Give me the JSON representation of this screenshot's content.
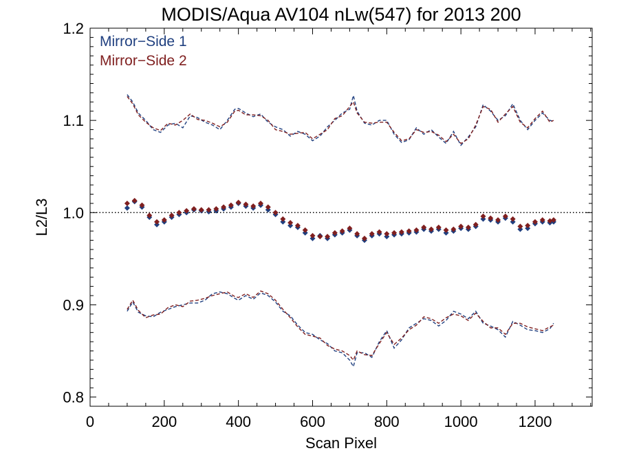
{
  "chart_data": {
    "type": "line",
    "title": "MODIS/Aqua AV104 nLw(547) for 2013 200",
    "xlabel": "Scan Pixel",
    "ylabel": "L2/L3",
    "xlim": [
      0,
      1354
    ],
    "ylim": [
      0.79,
      1.2
    ],
    "xticks": [
      0,
      200,
      400,
      600,
      800,
      1000,
      1200
    ],
    "xtick_labels": [
      "0",
      "200",
      "400",
      "600",
      "800",
      "1000",
      "1200"
    ],
    "yticks": [
      0.8,
      0.9,
      1.0,
      1.1,
      1.2
    ],
    "ytick_labels": [
      "0.8",
      "0.9",
      "1.0",
      "1.1",
      "1.2"
    ],
    "reference_line": {
      "y": 1.0,
      "style": "dotted"
    },
    "legend": {
      "placement": "top-left",
      "entries": [
        "Mirror−Side 1",
        "Mirror−Side 2"
      ]
    },
    "colors": {
      "mirror_side_1": "#1f3f7f",
      "mirror_side_2": "#7f1f1f"
    },
    "series": [
      {
        "name": "Mirror−Side 1",
        "kind": "mean",
        "style": "diamond-markers",
        "color": "#1f3f7f",
        "x": [
          100,
          120,
          140,
          160,
          180,
          200,
          220,
          240,
          260,
          280,
          300,
          320,
          340,
          360,
          380,
          400,
          420,
          440,
          460,
          480,
          500,
          520,
          540,
          560,
          580,
          600,
          620,
          640,
          660,
          680,
          700,
          720,
          740,
          760,
          780,
          800,
          820,
          840,
          860,
          880,
          900,
          920,
          940,
          960,
          980,
          1000,
          1020,
          1040,
          1060,
          1080,
          1100,
          1120,
          1140,
          1160,
          1180,
          1200,
          1220,
          1240,
          1250
        ],
        "y": [
          1.005,
          1.012,
          1.006,
          0.995,
          0.987,
          0.99,
          0.995,
          0.998,
          1.0,
          1.003,
          1.002,
          1.001,
          1.002,
          1.004,
          1.006,
          1.01,
          1.007,
          1.005,
          1.008,
          1.003,
          0.998,
          0.99,
          0.986,
          0.984,
          0.978,
          0.972,
          0.975,
          0.972,
          0.976,
          0.978,
          0.981,
          0.975,
          0.97,
          0.975,
          0.977,
          0.974,
          0.976,
          0.977,
          0.978,
          0.979,
          0.982,
          0.98,
          0.982,
          0.978,
          0.98,
          0.983,
          0.982,
          0.985,
          0.993,
          0.992,
          0.99,
          0.994,
          0.99,
          0.982,
          0.983,
          0.988,
          0.99,
          0.989,
          0.99
        ]
      },
      {
        "name": "Mirror−Side 2",
        "kind": "mean",
        "style": "diamond-markers",
        "color": "#7f1f1f",
        "x": [
          100,
          120,
          140,
          160,
          180,
          200,
          220,
          240,
          260,
          280,
          300,
          320,
          340,
          360,
          380,
          400,
          420,
          440,
          460,
          480,
          500,
          520,
          540,
          560,
          580,
          600,
          620,
          640,
          660,
          680,
          700,
          720,
          740,
          760,
          780,
          800,
          820,
          840,
          860,
          880,
          900,
          920,
          940,
          960,
          980,
          1000,
          1020,
          1040,
          1060,
          1080,
          1100,
          1120,
          1140,
          1160,
          1180,
          1200,
          1220,
          1240,
          1250
        ],
        "y": [
          1.01,
          1.013,
          1.008,
          0.997,
          0.99,
          0.992,
          0.997,
          1.0,
          1.002,
          1.004,
          1.003,
          1.003,
          1.004,
          1.006,
          1.008,
          1.011,
          1.009,
          1.007,
          1.01,
          1.006,
          1.0,
          0.993,
          0.989,
          0.986,
          0.981,
          0.975,
          0.974,
          0.974,
          0.978,
          0.98,
          0.983,
          0.977,
          0.972,
          0.977,
          0.979,
          0.977,
          0.978,
          0.979,
          0.98,
          0.981,
          0.984,
          0.982,
          0.984,
          0.981,
          0.982,
          0.985,
          0.984,
          0.987,
          0.996,
          0.994,
          0.992,
          0.996,
          0.993,
          0.985,
          0.986,
          0.99,
          0.992,
          0.991,
          0.992
        ]
      },
      {
        "name": "Mirror−Side 1 upper",
        "kind": "upper-bound",
        "style": "dashed",
        "color": "#1f3f7f",
        "x": [
          100,
          115,
          130,
          150,
          170,
          190,
          210,
          230,
          250,
          270,
          290,
          310,
          330,
          350,
          370,
          390,
          400,
          420,
          440,
          460,
          480,
          500,
          520,
          540,
          560,
          580,
          600,
          620,
          640,
          660,
          680,
          700,
          710,
          720,
          740,
          760,
          780,
          800,
          820,
          840,
          860,
          880,
          900,
          920,
          940,
          960,
          980,
          1000,
          1020,
          1040,
          1060,
          1080,
          1100,
          1120,
          1140,
          1160,
          1180,
          1200,
          1220,
          1240,
          1250
        ],
        "y": [
          1.128,
          1.12,
          1.108,
          1.1,
          1.09,
          1.087,
          1.095,
          1.097,
          1.092,
          1.105,
          1.103,
          1.098,
          1.095,
          1.09,
          1.1,
          1.112,
          1.113,
          1.108,
          1.104,
          1.107,
          1.098,
          1.093,
          1.09,
          1.083,
          1.088,
          1.085,
          1.078,
          1.083,
          1.093,
          1.1,
          1.108,
          1.112,
          1.127,
          1.11,
          1.097,
          1.095,
          1.1,
          1.1,
          1.085,
          1.076,
          1.079,
          1.092,
          1.085,
          1.09,
          1.082,
          1.075,
          1.088,
          1.073,
          1.082,
          1.093,
          1.117,
          1.11,
          1.1,
          1.105,
          1.118,
          1.1,
          1.09,
          1.1,
          1.108,
          1.1,
          1.099
        ]
      },
      {
        "name": "Mirror−Side 2 upper",
        "kind": "upper-bound",
        "style": "dashed",
        "color": "#7f1f1f",
        "x": [
          100,
          115,
          130,
          150,
          170,
          190,
          210,
          230,
          250,
          270,
          290,
          310,
          330,
          350,
          370,
          390,
          400,
          420,
          440,
          460,
          480,
          500,
          520,
          540,
          560,
          580,
          600,
          620,
          640,
          660,
          680,
          700,
          710,
          720,
          740,
          760,
          780,
          800,
          820,
          840,
          860,
          880,
          900,
          920,
          940,
          960,
          980,
          1000,
          1020,
          1040,
          1060,
          1080,
          1100,
          1120,
          1140,
          1160,
          1180,
          1200,
          1220,
          1240,
          1250
        ],
        "y": [
          1.126,
          1.118,
          1.106,
          1.098,
          1.092,
          1.089,
          1.097,
          1.095,
          1.1,
          1.107,
          1.101,
          1.1,
          1.097,
          1.093,
          1.098,
          1.11,
          1.111,
          1.106,
          1.106,
          1.105,
          1.1,
          1.09,
          1.088,
          1.085,
          1.086,
          1.087,
          1.08,
          1.085,
          1.09,
          1.102,
          1.105,
          1.115,
          1.12,
          1.108,
          1.098,
          1.097,
          1.098,
          1.098,
          1.087,
          1.078,
          1.08,
          1.09,
          1.087,
          1.088,
          1.084,
          1.077,
          1.085,
          1.075,
          1.08,
          1.095,
          1.115,
          1.112,
          1.098,
          1.107,
          1.115,
          1.098,
          1.092,
          1.102,
          1.11,
          1.098,
          1.1
        ]
      },
      {
        "name": "Mirror−Side 1 lower",
        "kind": "lower-bound",
        "style": "dashed",
        "color": "#1f3f7f",
        "x": [
          100,
          115,
          130,
          150,
          170,
          190,
          210,
          230,
          250,
          270,
          290,
          310,
          330,
          350,
          370,
          390,
          400,
          420,
          440,
          460,
          480,
          500,
          520,
          540,
          560,
          580,
          600,
          620,
          640,
          660,
          680,
          700,
          710,
          720,
          740,
          760,
          780,
          800,
          820,
          840,
          860,
          880,
          900,
          920,
          940,
          960,
          980,
          1000,
          1020,
          1040,
          1060,
          1080,
          1100,
          1120,
          1140,
          1160,
          1180,
          1200,
          1220,
          1240,
          1250
        ],
        "y": [
          0.893,
          0.903,
          0.892,
          0.888,
          0.887,
          0.892,
          0.895,
          0.898,
          0.9,
          0.902,
          0.902,
          0.905,
          0.912,
          0.914,
          0.912,
          0.907,
          0.905,
          0.91,
          0.906,
          0.913,
          0.91,
          0.903,
          0.893,
          0.888,
          0.878,
          0.87,
          0.868,
          0.862,
          0.858,
          0.85,
          0.848,
          0.84,
          0.833,
          0.848,
          0.848,
          0.843,
          0.86,
          0.872,
          0.853,
          0.862,
          0.875,
          0.88,
          0.885,
          0.883,
          0.877,
          0.883,
          0.893,
          0.89,
          0.885,
          0.893,
          0.88,
          0.877,
          0.873,
          0.865,
          0.882,
          0.878,
          0.873,
          0.872,
          0.87,
          0.874,
          0.88
        ]
      },
      {
        "name": "Mirror−Side 2 lower",
        "kind": "lower-bound",
        "style": "dashed",
        "color": "#7f1f1f",
        "x": [
          100,
          115,
          130,
          150,
          170,
          190,
          210,
          230,
          250,
          270,
          290,
          310,
          330,
          350,
          370,
          390,
          400,
          420,
          440,
          460,
          480,
          500,
          520,
          540,
          560,
          580,
          600,
          620,
          640,
          660,
          680,
          700,
          710,
          720,
          740,
          760,
          780,
          800,
          820,
          840,
          860,
          880,
          900,
          920,
          940,
          960,
          980,
          1000,
          1020,
          1040,
          1060,
          1080,
          1100,
          1120,
          1140,
          1160,
          1180,
          1200,
          1220,
          1240,
          1250
        ],
        "y": [
          0.895,
          0.905,
          0.894,
          0.886,
          0.889,
          0.89,
          0.897,
          0.9,
          0.898,
          0.904,
          0.905,
          0.907,
          0.91,
          0.912,
          0.914,
          0.909,
          0.908,
          0.912,
          0.908,
          0.915,
          0.912,
          0.905,
          0.895,
          0.886,
          0.876,
          0.868,
          0.866,
          0.864,
          0.856,
          0.852,
          0.85,
          0.845,
          0.84,
          0.85,
          0.846,
          0.845,
          0.858,
          0.87,
          0.857,
          0.864,
          0.873,
          0.878,
          0.887,
          0.885,
          0.88,
          0.886,
          0.89,
          0.888,
          0.883,
          0.891,
          0.882,
          0.875,
          0.875,
          0.868,
          0.88,
          0.88,
          0.876,
          0.874,
          0.872,
          0.876,
          0.878
        ]
      }
    ]
  }
}
